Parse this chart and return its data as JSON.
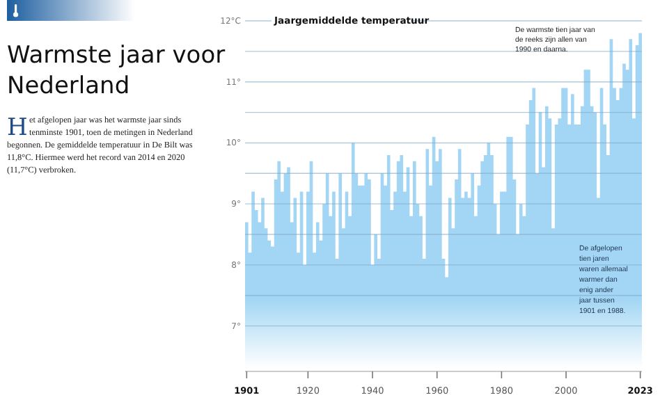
{
  "chart_data": {
    "type": "area",
    "title": "Warmste jaar voor Nederland",
    "subtitle": "Het afgelopen jaar was het warmste jaar sinds tenminste 1901, toen de metingen in Nederland begonnen. De gemiddelde temperatuur in De Bilt was 11,8°C. Hiermee werd het record van 2014 en 2020 (11,7°C) verbroken.",
    "ylabel": "Jaargemiddelde temperatuur",
    "annotations": [
      "De warmste tien jaar van de reeks zijn allen van 1990 en daarna.",
      "De afgelopen tien jaren waren allemaal warmer dan enig ander jaar tussen 1901 en 1988."
    ],
    "x": [
      1901,
      1902,
      1903,
      1904,
      1905,
      1906,
      1907,
      1908,
      1909,
      1910,
      1911,
      1912,
      1913,
      1914,
      1915,
      1916,
      1917,
      1918,
      1919,
      1920,
      1921,
      1922,
      1923,
      1924,
      1925,
      1926,
      1927,
      1928,
      1929,
      1930,
      1931,
      1932,
      1933,
      1934,
      1935,
      1936,
      1937,
      1938,
      1939,
      1940,
      1941,
      1942,
      1943,
      1944,
      1945,
      1946,
      1947,
      1948,
      1949,
      1950,
      1951,
      1952,
      1953,
      1954,
      1955,
      1956,
      1957,
      1958,
      1959,
      1960,
      1961,
      1962,
      1963,
      1964,
      1965,
      1966,
      1967,
      1968,
      1969,
      1970,
      1971,
      1972,
      1973,
      1974,
      1975,
      1976,
      1977,
      1978,
      1979,
      1980,
      1981,
      1982,
      1983,
      1984,
      1985,
      1986,
      1987,
      1988,
      1989,
      1990,
      1991,
      1992,
      1993,
      1994,
      1995,
      1996,
      1997,
      1998,
      1999,
      2000,
      2001,
      2002,
      2003,
      2004,
      2005,
      2006,
      2007,
      2008,
      2009,
      2010,
      2011,
      2012,
      2013,
      2014,
      2015,
      2016,
      2017,
      2018,
      2019,
      2020,
      2021,
      2022,
      2023
    ],
    "series": [
      {
        "color": "#a3d6f4",
        "values": [
          8.7,
          8.2,
          9.2,
          8.9,
          8.7,
          9.1,
          8.6,
          8.4,
          8.3,
          9.4,
          9.7,
          9.2,
          9.5,
          9.6,
          8.7,
          9.1,
          8.2,
          9.2,
          8.0,
          9.2,
          9.7,
          8.2,
          8.7,
          8.4,
          9.0,
          9.5,
          8.8,
          9.2,
          8.1,
          9.5,
          8.6,
          9.2,
          8.8,
          10.0,
          9.5,
          9.3,
          9.3,
          9.5,
          9.4,
          8.0,
          8.5,
          8.1,
          9.5,
          9.3,
          9.8,
          8.9,
          9.2,
          9.7,
          9.8,
          9.2,
          9.6,
          8.8,
          9.7,
          9.0,
          8.8,
          8.1,
          9.9,
          9.3,
          10.1,
          9.7,
          9.9,
          8.1,
          7.8,
          9.1,
          8.6,
          9.4,
          9.9,
          9.1,
          9.2,
          9.1,
          9.5,
          8.8,
          9.3,
          9.7,
          9.8,
          10.0,
          9.8,
          9.0,
          8.5,
          9.2,
          9.2,
          10.1,
          10.1,
          9.4,
          8.5,
          9.0,
          8.8,
          10.3,
          10.7,
          10.9,
          9.5,
          10.5,
          9.6,
          10.6,
          10.4,
          8.6,
          10.3,
          10.4,
          10.9,
          10.9,
          10.3,
          10.8,
          10.3,
          10.3,
          10.6,
          11.2,
          11.2,
          10.6,
          10.5,
          9.1,
          10.9,
          10.3,
          9.8,
          11.7,
          10.9,
          10.7,
          10.9,
          11.3,
          11.2,
          11.7,
          10.4,
          11.6,
          11.8
        ]
      }
    ],
    "xlim": [
      1900.5,
      2023.5
    ],
    "xticks": [
      1901,
      1920,
      1940,
      1960,
      1980,
      2000,
      2023
    ],
    "ylim": [
      6.3,
      12
    ],
    "yticks": [
      {
        "value": 7,
        "label": "7°"
      },
      {
        "value": 7.5,
        "label": null
      },
      {
        "value": 8,
        "label": "8°"
      },
      {
        "value": 8.5,
        "label": null
      },
      {
        "value": 9,
        "label": "9°"
      },
      {
        "value": 9.5,
        "label": null
      },
      {
        "value": 10,
        "label": "10°"
      },
      {
        "value": 10.5,
        "label": null
      },
      {
        "value": 11,
        "label": "11°"
      },
      {
        "value": 11.5,
        "label": null
      },
      {
        "value": 12,
        "label": "12°C"
      }
    ],
    "grid": "y"
  }
}
